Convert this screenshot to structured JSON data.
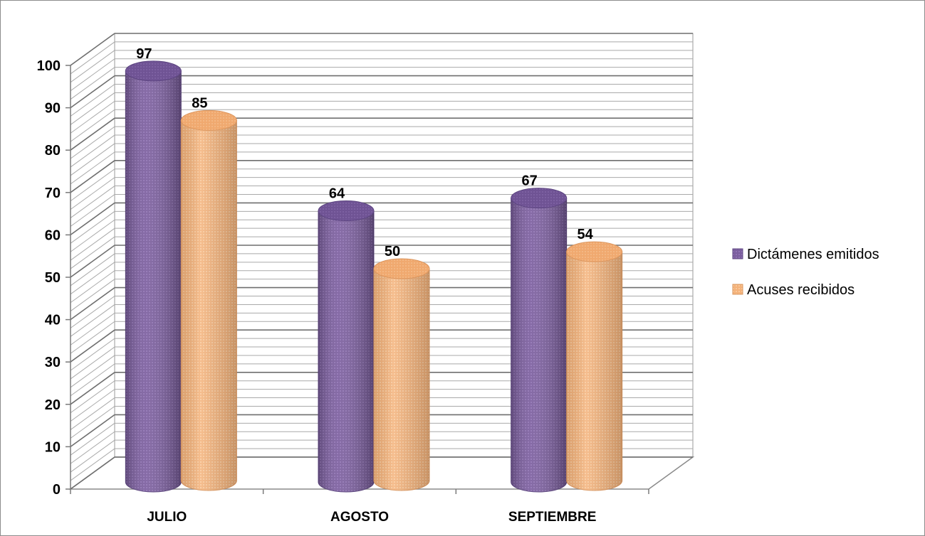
{
  "chart_data": {
    "type": "bar",
    "categories": [
      "JULIO",
      "AGOSTO",
      "SEPTIEMBRE"
    ],
    "series": [
      {
        "name": "Dictámenes emitidos",
        "values": [
          97,
          64,
          67
        ],
        "color": "#7b5e9e"
      },
      {
        "name": "Acuses recibidos",
        "values": [
          85,
          50,
          54
        ],
        "color": "#f4b27a"
      }
    ],
    "ylim": [
      0,
      100
    ],
    "yticks": [
      0,
      10,
      20,
      30,
      40,
      50,
      60,
      70,
      80,
      90,
      100
    ],
    "title": "",
    "xlabel": "",
    "ylabel": "",
    "grid": true,
    "legend_position": "right",
    "style": "3d-cylinder"
  }
}
